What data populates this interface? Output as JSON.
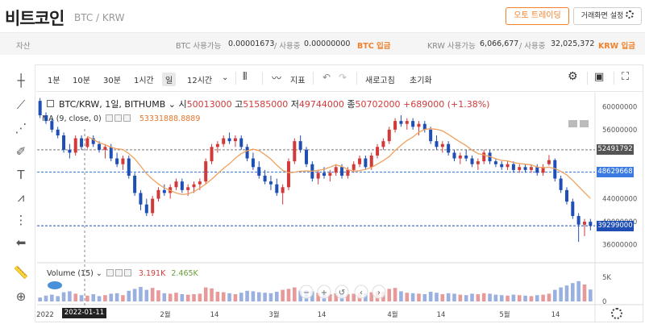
{
  "header": {
    "coin_name": "비트코인",
    "coin_pair": "BTC / KRW",
    "auto_trading_label": "오토 트레이딩",
    "screen_settings_label": "거래화면 설정"
  },
  "assets": {
    "label": "자산",
    "btc_available_label": "BTC 사용가능",
    "btc_available_value": "0.00001673",
    "btc_in_use_label": "/ 사용중",
    "btc_in_use_value": "0.00000000",
    "btc_deposit_label": "BTC 입금",
    "krw_available_label": "KRW 사용가능",
    "krw_available_value": "6,066,677",
    "krw_in_use_label": "/ 사용중",
    "krw_in_use_value": "32,025,372",
    "krw_deposit_label": "KRW 입금"
  },
  "toolbar": {
    "intervals": [
      "1분",
      "10분",
      "30분",
      "1시간",
      "일"
    ],
    "active_interval": "일",
    "more_interval": "12시간",
    "indicator_label": "지표",
    "refresh_label": "새로고침",
    "reset_label": "초기화"
  },
  "chart_info": {
    "symbol": "BTC/KRW, 1일, BITHUMB",
    "open_label": "시",
    "open_value": "50013000",
    "high_label": "고",
    "high_value": "51585000",
    "low_label": "저",
    "low_value": "49744000",
    "close_label": "종",
    "close_value": "50702000",
    "change": "+689000 (+1.38%)",
    "ma_label": "MA (9, close, 0)",
    "ma_value": "53331888.8889",
    "volume_label": "Volume (15)",
    "volume_value_1": "3.191K",
    "volume_value_2": "2.465K"
  },
  "axis": {
    "price_ticks": [
      "60000000",
      "56000000",
      "44000000",
      "40000000",
      "36000000"
    ],
    "price_tags": [
      "52491792",
      "48629668",
      "39299000"
    ],
    "volume_ticks": [
      "5K",
      "0"
    ],
    "x_ticks": [
      "2022",
      "2월",
      "14",
      "3월",
      "14",
      "4월",
      "14",
      "5월",
      "14"
    ],
    "crosshair_date": "2022-01-11"
  },
  "colors": {
    "up": "#d23a3a",
    "down": "#1f4fb4",
    "ma": "#f0a15f",
    "accent": "#f1812a"
  },
  "chart_data": {
    "type": "candlestick",
    "ylim": [
      34000000,
      62000000
    ],
    "ma_period": 9,
    "candles": [
      [
        61000000,
        61500000,
        58000000,
        58500000,
        800
      ],
      [
        58500000,
        59000000,
        57000000,
        57500000,
        1200
      ],
      [
        57500000,
        58000000,
        55500000,
        56000000,
        1400
      ],
      [
        56000000,
        56500000,
        54500000,
        55000000,
        1100
      ],
      [
        55000000,
        55500000,
        52000000,
        52500000,
        1900
      ],
      [
        52500000,
        53500000,
        51000000,
        52000000,
        2100
      ],
      [
        52000000,
        55000000,
        51500000,
        54500000,
        1600
      ],
      [
        54500000,
        55000000,
        52500000,
        53000000,
        1300
      ],
      [
        53000000,
        54800000,
        52700000,
        54500000,
        1200
      ],
      [
        54500000,
        55000000,
        53000000,
        53500000,
        1500
      ],
      [
        53500000,
        54000000,
        52000000,
        52500000,
        1100
      ],
      [
        52500000,
        53500000,
        51000000,
        53000000,
        1300
      ],
      [
        53000000,
        53500000,
        50500000,
        51000000,
        1600
      ],
      [
        51000000,
        52000000,
        49500000,
        50000000,
        1700
      ],
      [
        50000000,
        51500000,
        49000000,
        51000000,
        1300
      ],
      [
        51000000,
        51500000,
        47500000,
        48000000,
        2200
      ],
      [
        48000000,
        48500000,
        44500000,
        45000000,
        2600
      ],
      [
        45000000,
        45500000,
        42000000,
        43000000,
        3000
      ],
      [
        43000000,
        44000000,
        41000000,
        41500000,
        2400
      ],
      [
        41500000,
        44500000,
        41000000,
        44000000,
        2800
      ],
      [
        44000000,
        46000000,
        43500000,
        45500000,
        2300
      ],
      [
        45500000,
        46500000,
        44500000,
        45000000,
        1700
      ],
      [
        45000000,
        46500000,
        44000000,
        46000000,
        1600
      ],
      [
        46000000,
        47500000,
        45500000,
        47000000,
        1800
      ],
      [
        47000000,
        47500000,
        45000000,
        45500000,
        1500
      ],
      [
        45500000,
        46500000,
        44500000,
        46000000,
        1400
      ],
      [
        46000000,
        47000000,
        45000000,
        46500000,
        1500
      ],
      [
        46500000,
        47500000,
        45500000,
        47000000,
        1600
      ],
      [
        47000000,
        51000000,
        46500000,
        50500000,
        2900
      ],
      [
        50500000,
        53500000,
        50000000,
        53000000,
        2700
      ],
      [
        53000000,
        54000000,
        52000000,
        53500000,
        2000
      ],
      [
        53500000,
        55000000,
        53000000,
        54500000,
        1900
      ],
      [
        54500000,
        55500000,
        53500000,
        54000000,
        1700
      ],
      [
        54000000,
        55000000,
        53000000,
        54500000,
        1500
      ],
      [
        54500000,
        55000000,
        52500000,
        53000000,
        1800
      ],
      [
        53000000,
        53500000,
        50500000,
        51000000,
        2200
      ],
      [
        51000000,
        52000000,
        49000000,
        49500000,
        2100
      ],
      [
        49500000,
        50500000,
        47500000,
        48000000,
        1900
      ],
      [
        48000000,
        49000000,
        46500000,
        47000000,
        1800
      ],
      [
        47000000,
        48000000,
        45500000,
        46500000,
        1700
      ],
      [
        46500000,
        47500000,
        44500000,
        45000000,
        2000
      ],
      [
        45000000,
        46500000,
        43000000,
        46000000,
        2400
      ],
      [
        46000000,
        51000000,
        45500000,
        50500000,
        2600
      ],
      [
        50500000,
        54500000,
        50000000,
        54000000,
        2900
      ],
      [
        54000000,
        55000000,
        52000000,
        52500000,
        2200
      ],
      [
        52500000,
        53000000,
        49500000,
        50000000,
        2300
      ],
      [
        50000000,
        50500000,
        47000000,
        47500000,
        2100
      ],
      [
        47500000,
        49000000,
        46500000,
        48500000,
        1800
      ],
      [
        48500000,
        49500000,
        47500000,
        48000000,
        1600
      ],
      [
        48000000,
        49000000,
        47000000,
        48500000,
        1500
      ],
      [
        48500000,
        50000000,
        48000000,
        49500000,
        1700
      ],
      [
        49500000,
        50000000,
        47500000,
        48000000,
        1600
      ],
      [
        48000000,
        49500000,
        47500000,
        49000000,
        1500
      ],
      [
        49000000,
        50500000,
        48500000,
        50000000,
        1600
      ],
      [
        50000000,
        51500000,
        49500000,
        51000000,
        1800
      ],
      [
        51000000,
        51500000,
        49000000,
        49500000,
        1700
      ],
      [
        49500000,
        52000000,
        49000000,
        51500000,
        1900
      ],
      [
        51500000,
        53500000,
        51000000,
        53000000,
        2100
      ],
      [
        53000000,
        54500000,
        52500000,
        54000000,
        2000
      ],
      [
        54000000,
        56500000,
        53500000,
        56000000,
        2600
      ],
      [
        56000000,
        58000000,
        55500000,
        57500000,
        2800
      ],
      [
        57500000,
        58500000,
        56500000,
        57000000,
        2100
      ],
      [
        57000000,
        58000000,
        56000000,
        57500000,
        1800
      ],
      [
        57500000,
        58000000,
        56000000,
        56500000,
        1700
      ],
      [
        56500000,
        57500000,
        55000000,
        57000000,
        1600
      ],
      [
        57000000,
        57500000,
        55500000,
        56000000,
        1500
      ],
      [
        56000000,
        56500000,
        53500000,
        54000000,
        2000
      ],
      [
        54000000,
        55000000,
        52500000,
        53000000,
        1800
      ],
      [
        53000000,
        54000000,
        52000000,
        53500000,
        1500
      ],
      [
        53500000,
        54000000,
        51500000,
        52000000,
        1700
      ],
      [
        52000000,
        52500000,
        50500000,
        51000000,
        1600
      ],
      [
        51000000,
        52000000,
        50000000,
        51500000,
        1400
      ],
      [
        51500000,
        52500000,
        50500000,
        51000000,
        1300
      ],
      [
        51000000,
        51500000,
        49500000,
        50000000,
        1600
      ],
      [
        50000000,
        51000000,
        49000000,
        50500000,
        1500
      ],
      [
        50500000,
        52500000,
        50000000,
        52000000,
        1700
      ],
      [
        52000000,
        52500000,
        50000000,
        50500000,
        1600
      ],
      [
        50500000,
        51000000,
        49500000,
        50000000,
        1400
      ],
      [
        50000000,
        50500000,
        49000000,
        49500000,
        1300
      ],
      [
        49500000,
        50500000,
        49000000,
        50000000,
        1200
      ],
      [
        50000000,
        50500000,
        48500000,
        49000000,
        1400
      ],
      [
        49000000,
        50000000,
        48500000,
        49500000,
        1300
      ],
      [
        49500000,
        50000000,
        48500000,
        49000000,
        1200
      ],
      [
        49000000,
        50000000,
        48500000,
        49500000,
        1100
      ],
      [
        49500000,
        50000000,
        48000000,
        48500000,
        1300
      ],
      [
        48500000,
        50000000,
        48000000,
        49500000,
        1400
      ],
      [
        50013000,
        51585000,
        49744000,
        50702000,
        1600
      ],
      [
        50702000,
        51000000,
        47000000,
        47500000,
        2400
      ],
      [
        47500000,
        48000000,
        45000000,
        45500000,
        2900
      ],
      [
        45500000,
        46000000,
        43000000,
        43500000,
        3300
      ],
      [
        43500000,
        44000000,
        40500000,
        41000000,
        3800
      ],
      [
        41000000,
        41500000,
        36500000,
        39500000,
        4200
      ],
      [
        39500000,
        40500000,
        37500000,
        40000000,
        3500
      ],
      [
        40000000,
        40500000,
        38500000,
        39299000,
        2465
      ]
    ]
  }
}
